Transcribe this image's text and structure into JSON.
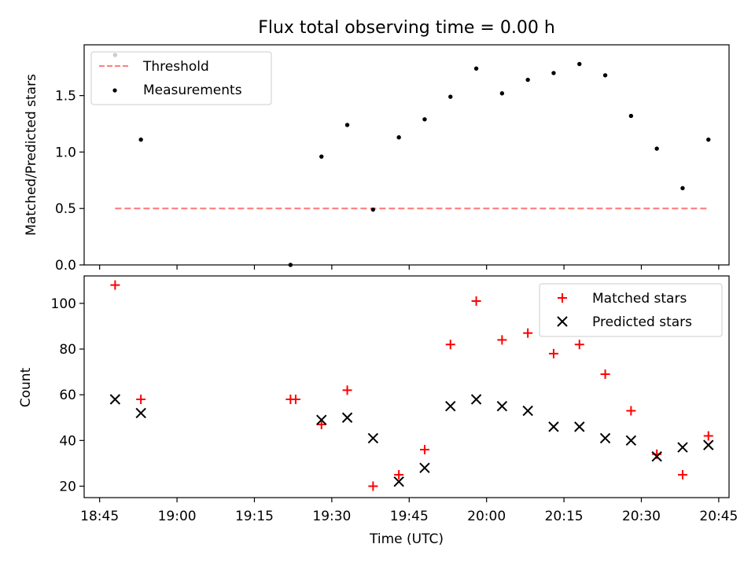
{
  "figure": {
    "title": "Flux total observing time = 0.00 h",
    "xlabel": "Time (UTC)",
    "x_ticks": [
      "18:45",
      "19:00",
      "19:15",
      "19:30",
      "19:45",
      "20:00",
      "20:15",
      "20:30",
      "20:45"
    ]
  },
  "chart_data": [
    {
      "type": "scatter",
      "panel": "top",
      "ylabel": "Matched/Predicted stars",
      "xlim": [
        "18:42",
        "20:47"
      ],
      "ylim": [
        0,
        1.95
      ],
      "y_ticks": [
        "0.0",
        "0.5",
        "1.0",
        "1.5"
      ],
      "legend": "top-left",
      "series": [
        {
          "name": "Threshold",
          "kind": "dashed-line",
          "color": "#ff7f7f",
          "points": [
            [
              "18:48",
              0.5
            ],
            [
              "20:43",
              0.5
            ]
          ]
        },
        {
          "name": "Measurements",
          "kind": "dot",
          "color": "#000000",
          "points": [
            [
              "18:48",
              1.86
            ],
            [
              "18:53",
              1.11
            ],
            [
              "19:22",
              0.0
            ],
            [
              "19:28",
              0.96
            ],
            [
              "19:33",
              1.24
            ],
            [
              "19:38",
              0.49
            ],
            [
              "19:43",
              1.13
            ],
            [
              "19:48",
              1.29
            ],
            [
              "19:53",
              1.49
            ],
            [
              "19:58",
              1.74
            ],
            [
              "20:03",
              1.52
            ],
            [
              "20:08",
              1.64
            ],
            [
              "20:13",
              1.7
            ],
            [
              "20:18",
              1.78
            ],
            [
              "20:23",
              1.68
            ],
            [
              "20:28",
              1.32
            ],
            [
              "20:33",
              1.03
            ],
            [
              "20:38",
              0.68
            ],
            [
              "20:43",
              1.11
            ]
          ]
        }
      ]
    },
    {
      "type": "scatter",
      "panel": "bottom",
      "ylabel": "Count",
      "xlim": [
        "18:42",
        "20:47"
      ],
      "ylim": [
        15,
        112
      ],
      "y_ticks": [
        "20",
        "40",
        "60",
        "80",
        "100"
      ],
      "legend": "top-right",
      "series": [
        {
          "name": "Matched stars",
          "kind": "plus",
          "color": "#ff0000",
          "points": [
            [
              "18:48",
              108
            ],
            [
              "18:53",
              58
            ],
            [
              "19:22",
              58
            ],
            [
              "19:23",
              58
            ],
            [
              "19:28",
              47
            ],
            [
              "19:33",
              62
            ],
            [
              "19:38",
              20
            ],
            [
              "19:43",
              25
            ],
            [
              "19:48",
              36
            ],
            [
              "19:53",
              82
            ],
            [
              "19:58",
              101
            ],
            [
              "20:03",
              84
            ],
            [
              "20:08",
              87
            ],
            [
              "20:13",
              78
            ],
            [
              "20:18",
              82
            ],
            [
              "20:23",
              69
            ],
            [
              "20:28",
              53
            ],
            [
              "20:33",
              34
            ],
            [
              "20:38",
              25
            ],
            [
              "20:43",
              42
            ]
          ]
        },
        {
          "name": "Predicted stars",
          "kind": "x",
          "color": "#000000",
          "points": [
            [
              "18:48",
              58
            ],
            [
              "18:53",
              52
            ],
            [
              "19:28",
              49
            ],
            [
              "19:33",
              50
            ],
            [
              "19:38",
              41
            ],
            [
              "19:43",
              22
            ],
            [
              "19:48",
              28
            ],
            [
              "19:53",
              55
            ],
            [
              "19:58",
              58
            ],
            [
              "20:03",
              55
            ],
            [
              "20:08",
              53
            ],
            [
              "20:13",
              46
            ],
            [
              "20:18",
              46
            ],
            [
              "20:23",
              41
            ],
            [
              "20:28",
              40
            ],
            [
              "20:33",
              33
            ],
            [
              "20:38",
              37
            ],
            [
              "20:43",
              38
            ]
          ]
        }
      ]
    }
  ]
}
